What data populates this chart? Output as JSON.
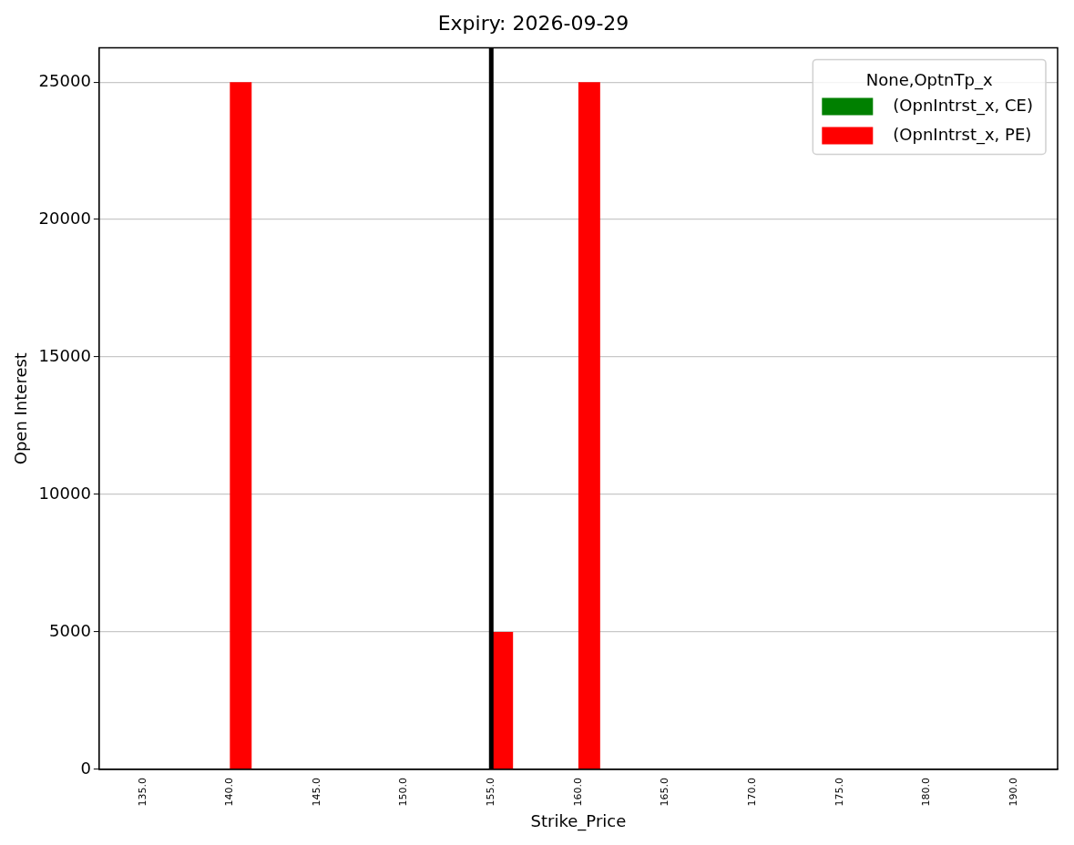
{
  "chart_data": {
    "type": "bar",
    "title": "Expiry: 2026-09-29",
    "xlabel": "Strike_Price",
    "ylabel": "Open Interest",
    "legend_title": "None,OptnTp_x",
    "categories": [
      "135.0",
      "140.0",
      "145.0",
      "150.0",
      "155.0",
      "160.0",
      "165.0",
      "170.0",
      "175.0",
      "180.0",
      "190.0"
    ],
    "series": [
      {
        "name": "(OpnIntrst_x, CE)",
        "color": "#008000",
        "values": [
          0,
          0,
          0,
          0,
          0,
          0,
          0,
          0,
          0,
          0,
          0
        ]
      },
      {
        "name": "(OpnIntrst_x, PE)",
        "color": "#ff0000",
        "values": [
          0,
          25000,
          0,
          0,
          5000,
          25000,
          0,
          0,
          0,
          0,
          0
        ]
      }
    ],
    "ylim": [
      0,
      26250
    ],
    "yticks": [
      0,
      5000,
      10000,
      15000,
      20000,
      25000
    ],
    "grid": "y",
    "legend": "top right",
    "ref_lines": [
      {
        "axis": "x",
        "value": "155.0",
        "color": "#000000",
        "line_style": "solid"
      }
    ]
  }
}
